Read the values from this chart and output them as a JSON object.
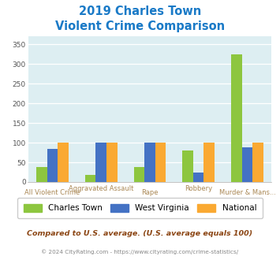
{
  "title_line1": "2019 Charles Town",
  "title_line2": "Violent Crime Comparison",
  "categories_top": [
    "",
    "Aggravated Assault",
    "",
    "Robbery",
    ""
  ],
  "categories_bot": [
    "All Violent Crime",
    "",
    "Rape",
    "",
    "Murder & Mans..."
  ],
  "charles_town": [
    38,
    18,
    38,
    80,
    325
  ],
  "west_virginia": [
    85,
    100,
    100,
    25,
    88
  ],
  "national": [
    100,
    100,
    100,
    100,
    100
  ],
  "color_charles_town": "#8dc63f",
  "color_west_virginia": "#4472c4",
  "color_national": "#faa932",
  "title_color": "#1a7ac7",
  "ylim": [
    0,
    370
  ],
  "yticks": [
    0,
    50,
    100,
    150,
    200,
    250,
    300,
    350
  ],
  "footnote1": "Compared to U.S. average. (U.S. average equals 100)",
  "footnote2": "© 2024 CityRating.com - https://www.cityrating.com/crime-statistics/",
  "footnote1_color": "#8b4513",
  "footnote2_color": "#888888",
  "bg_color": "#ddeef2",
  "bar_width": 0.22,
  "legend_label1": "Charles Town",
  "legend_label2": "West Virginia",
  "legend_label3": "National"
}
